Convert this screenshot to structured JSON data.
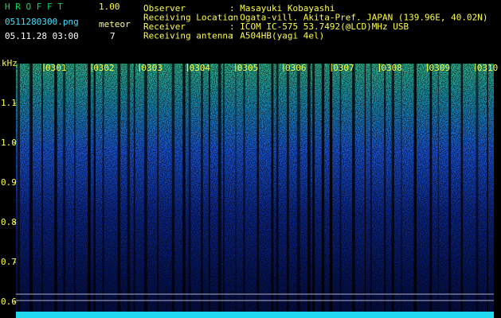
{
  "header": {
    "app": "H R O F F T",
    "version": "1.00",
    "filename": "0511280300.png",
    "meteor_label": "meteor",
    "datetime": "05.11.28 03:00",
    "meteor_count": "7",
    "info": [
      {
        "label": "Observer",
        "value": ": Masayuki Kobayashi"
      },
      {
        "label": "Receiving Location",
        "value": ": Ogata-vill. Akita-Pref. JAPAN (139.96E, 40.02N)"
      },
      {
        "label": "Receiver",
        "value": ": ICOM IC-575 53.7492(@LCD)MHz USB"
      },
      {
        "label": "Receiving antenna",
        "value": ": A504HB(yagi 4el)"
      }
    ]
  },
  "spectrogram": {
    "y_label": "kHz",
    "ylim": [
      0.56,
      1.2
    ],
    "yticks": [
      0.6,
      0.7,
      0.8,
      0.9,
      {
        "value": 1,
        "label": "1.0"
      },
      1.1
    ],
    "time_labels": [
      "0301",
      "0302",
      "0303",
      "0304",
      "0305",
      "0306",
      "0307",
      "0308",
      "0309",
      "0310"
    ]
  }
}
